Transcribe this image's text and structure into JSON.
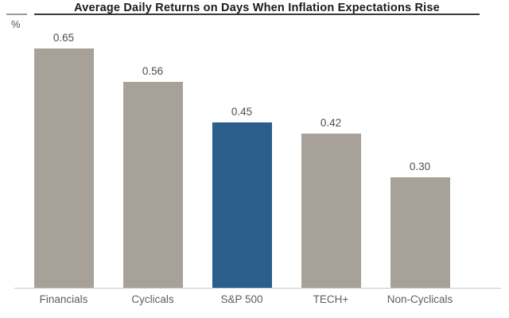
{
  "header": {
    "title": "Average Daily Returns on Days When Inflation Expectations Rise",
    "unit_label": "%"
  },
  "chart_data": {
    "type": "bar",
    "title": "Average Daily Returns on Days When Inflation Expectations Rise",
    "ylabel": "%",
    "xlabel": "",
    "categories": [
      "Financials",
      "Cyclicals",
      "S&P 500",
      "TECH+",
      "Non-Cyclicals"
    ],
    "values": [
      0.65,
      0.56,
      0.45,
      0.42,
      0.3
    ],
    "value_labels": [
      "0.65",
      "0.56",
      "0.45",
      "0.42",
      "0.30"
    ],
    "ylim": [
      0,
      0.74
    ],
    "grid": false,
    "legend": false,
    "highlight_index": 2,
    "colors": {
      "bar_default": "#a8a19a",
      "bar_highlight": "#2b5e8a",
      "title_text": "#1a1a1a",
      "value_text": "#4d4d4d",
      "category_text": "#5e5e5e",
      "title_rule": "#3a3a3a",
      "baseline": "#c9c9c9"
    }
  }
}
